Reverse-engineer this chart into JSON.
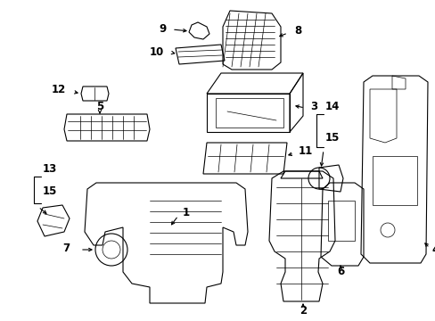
{
  "background_color": "#ffffff",
  "fig_width": 4.89,
  "fig_height": 3.6,
  "dpi": 100,
  "font_size": 8.5,
  "font_size_small": 7.5
}
